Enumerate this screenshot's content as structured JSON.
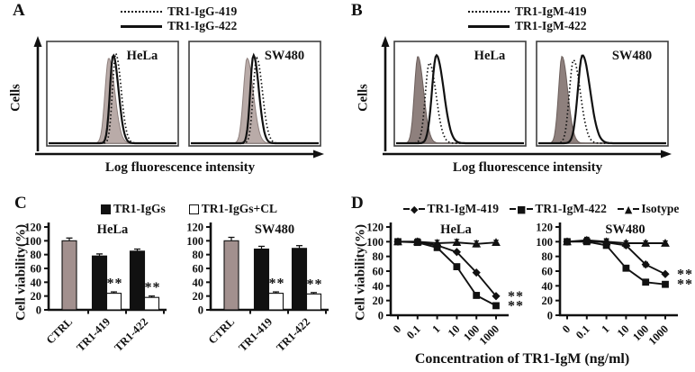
{
  "panels": {
    "A": {
      "letter": "A",
      "legend": [
        {
          "label": "TR1-IgG-419",
          "line": "dotted"
        },
        {
          "label": "TR1-IgG-422",
          "line": "solid"
        }
      ],
      "ylabel": "Cells",
      "xlabel": "Log fluorescence intensity"
    },
    "B": {
      "letter": "B",
      "legend": [
        {
          "label": "TR1-IgM-419",
          "line": "dotted"
        },
        {
          "label": "TR1-IgM-422",
          "line": "solid"
        }
      ],
      "ylabel": "Cells",
      "xlabel": "Log fluorescence intensity"
    },
    "C": {
      "letter": "C",
      "legend": [
        {
          "label": "TR1-IgGs",
          "swatch": "filled-square"
        },
        {
          "label": "TR1-IgGs+CL",
          "swatch": "open-square"
        }
      ],
      "ylabel": "Cell viability(%)"
    },
    "D": {
      "letter": "D",
      "legend": [
        {
          "label": "TR1-IgM-419",
          "marker": "diamond",
          "glyph": "◆"
        },
        {
          "label": "TR1-IgM-422",
          "marker": "square",
          "glyph": "■"
        },
        {
          "label": "Isotype",
          "marker": "triangle",
          "glyph": "▲"
        }
      ],
      "ylabel": "Cell viability(%)",
      "xlabel": "Concentration of TR1-IgM (ng/ml)"
    }
  },
  "chart_data": [
    {
      "panel": "A",
      "type": "area",
      "subtype": "flow-cytometry-histogram",
      "xlabel": "Log fluorescence intensity",
      "ylabel": "Cells",
      "legend": [
        "TR1-IgG-419 (dotted)",
        "TR1-IgG-422 (solid)"
      ],
      "fill_color": "#b9aba8",
      "fill_stroke": "#8f817e",
      "note": "peak centers are fractions of the x-axis (log fluorescence), heights are fractions of box height",
      "subplots": [
        {
          "title": "HeLa",
          "curves": [
            {
              "name": "unstained-control",
              "style": "filled",
              "center": 0.47,
              "sigma": 0.032,
              "height": 0.9
            },
            {
              "name": "TR1-IgG-422",
              "style": "solid",
              "center": 0.505,
              "sigma": 0.028,
              "height": 0.93
            },
            {
              "name": "TR1-IgG-419",
              "style": "dotted",
              "center": 0.525,
              "sigma": 0.028,
              "height": 0.95
            }
          ]
        },
        {
          "title": "SW480",
          "curves": [
            {
              "name": "unstained-control",
              "style": "filled",
              "center": 0.44,
              "sigma": 0.032,
              "height": 0.9
            },
            {
              "name": "TR1-IgG-422",
              "style": "solid",
              "center": 0.49,
              "sigma": 0.028,
              "height": 0.93
            },
            {
              "name": "TR1-IgG-419",
              "style": "dotted",
              "center": 0.515,
              "sigma": 0.03,
              "height": 0.9
            }
          ]
        }
      ]
    },
    {
      "panel": "B",
      "type": "area",
      "subtype": "flow-cytometry-histogram",
      "xlabel": "Log fluorescence intensity",
      "ylabel": "Cells",
      "legend": [
        "TR1-IgM-419 (dotted)",
        "TR1-IgM-422 (solid)"
      ],
      "fill_color": "#8e807d",
      "fill_stroke": "#6b5e5b",
      "subplots": [
        {
          "title": "HeLa",
          "curves": [
            {
              "name": "unstained-control",
              "style": "filled",
              "center": 0.17,
              "sigma": 0.03,
              "height": 0.92
            },
            {
              "name": "TR1-IgM-419",
              "style": "dotted",
              "center": 0.26,
              "sigma": 0.035,
              "height": 0.85
            },
            {
              "name": "TR1-IgM-422",
              "style": "solid",
              "center": 0.315,
              "sigma": 0.038,
              "height": 0.93
            }
          ]
        },
        {
          "title": "SW480",
          "curves": [
            {
              "name": "unstained-control",
              "style": "filled",
              "center": 0.185,
              "sigma": 0.03,
              "height": 0.92
            },
            {
              "name": "TR1-IgM-419",
              "style": "dotted",
              "center": 0.275,
              "sigma": 0.036,
              "height": 0.88
            },
            {
              "name": "TR1-IgM-422",
              "style": "solid",
              "center": 0.345,
              "sigma": 0.04,
              "height": 0.93
            }
          ]
        }
      ]
    },
    {
      "panel": "C",
      "type": "bar",
      "ylabel": "Cell viability(%)",
      "ylim": [
        0,
        120
      ],
      "yticks": [
        0,
        20,
        40,
        60,
        80,
        100,
        120
      ],
      "categories": [
        "CTRL",
        "TR1-419",
        "TR1-422"
      ],
      "legend": [
        "TR1-IgGs",
        "TR1-IgGs+CL"
      ],
      "ctrl_bar_color": "#a2908e",
      "subplots": [
        {
          "title": "HeLa",
          "groups": [
            {
              "category": "CTRL",
              "bars": [
                {
                  "series": "CTRL",
                  "value": 100,
                  "error": 4,
                  "fill": "#a2908e"
                }
              ]
            },
            {
              "category": "TR1-419",
              "bars": [
                {
                  "series": "TR1-IgGs",
                  "value": 78,
                  "error": 3,
                  "fill": "#111111"
                },
                {
                  "series": "TR1-IgGs+CL",
                  "value": 24,
                  "error": 2,
                  "fill": "#ffffff",
                  "sig": "**"
                }
              ]
            },
            {
              "category": "TR1-422",
              "bars": [
                {
                  "series": "TR1-IgGs",
                  "value": 85,
                  "error": 3,
                  "fill": "#111111"
                },
                {
                  "series": "TR1-IgGs+CL",
                  "value": 18,
                  "error": 2,
                  "fill": "#ffffff",
                  "sig": "**"
                }
              ]
            }
          ]
        },
        {
          "title": "SW480",
          "groups": [
            {
              "category": "CTRL",
              "bars": [
                {
                  "series": "CTRL",
                  "value": 100,
                  "error": 5,
                  "fill": "#a2908e"
                }
              ]
            },
            {
              "category": "TR1-419",
              "bars": [
                {
                  "series": "TR1-IgGs",
                  "value": 88,
                  "error": 4,
                  "fill": "#111111"
                },
                {
                  "series": "TR1-IgGs+CL",
                  "value": 24,
                  "error": 2,
                  "fill": "#ffffff",
                  "sig": "**"
                }
              ]
            },
            {
              "category": "TR1-422",
              "bars": [
                {
                  "series": "TR1-IgGs",
                  "value": 89,
                  "error": 4,
                  "fill": "#111111"
                },
                {
                  "series": "TR1-IgGs+CL",
                  "value": 23,
                  "error": 2,
                  "fill": "#ffffff",
                  "sig": "**"
                }
              ]
            }
          ]
        }
      ]
    },
    {
      "panel": "D",
      "type": "line",
      "xlabel": "Concentration of TR1-IgM (ng/ml)",
      "ylabel": "Cell viability(%)",
      "ylim": [
        0,
        120
      ],
      "yticks": [
        0,
        20,
        40,
        60,
        80,
        100,
        120
      ],
      "x_categories": [
        "0",
        "0.1",
        "1",
        "10",
        "100",
        "1000"
      ],
      "subplots": [
        {
          "title": "HeLa",
          "series": [
            {
              "name": "TR1-IgM-419",
              "marker": "diamond",
              "values": [
                100,
                100,
                95,
                86,
                58,
                26
              ],
              "errors": [
                3,
                4,
                3,
                0,
                0,
                0
              ],
              "sig": "**"
            },
            {
              "name": "TR1-IgM-422",
              "marker": "square",
              "values": [
                100,
                99,
                92,
                66,
                27,
                13
              ],
              "errors": [
                3,
                3,
                3,
                0,
                0,
                0
              ],
              "sig": "**"
            },
            {
              "name": "Isotype",
              "marker": "triangle",
              "values": [
                100,
                100,
                98,
                99,
                97,
                99
              ],
              "errors": [
                3,
                4,
                4,
                4,
                4,
                3
              ]
            }
          ]
        },
        {
          "title": "SW480",
          "series": [
            {
              "name": "TR1-IgM-419",
              "marker": "diamond",
              "values": [
                100,
                101,
                99,
                95,
                69,
                56
              ],
              "errors": [
                4,
                4,
                4,
                3,
                3,
                0
              ],
              "sig": "**"
            },
            {
              "name": "TR1-IgM-422",
              "marker": "square",
              "values": [
                100,
                100,
                95,
                64,
                45,
                42
              ],
              "errors": [
                4,
                3,
                3,
                0,
                0,
                0
              ],
              "sig": "**"
            },
            {
              "name": "Isotype",
              "marker": "triangle",
              "values": [
                100,
                102,
                100,
                98,
                98,
                98
              ],
              "errors": [
                4,
                4,
                4,
                3,
                3,
                3
              ]
            }
          ]
        }
      ]
    }
  ]
}
